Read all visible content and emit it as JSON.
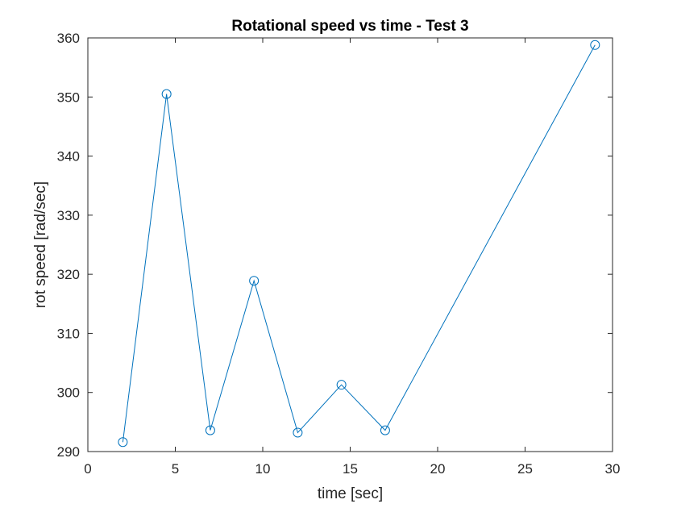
{
  "chart_data": {
    "type": "line",
    "title": "Rotational speed vs time - Test 3",
    "xlabel": "time [sec]",
    "ylabel": "rot speed [rad/sec]",
    "xlim": [
      0,
      30
    ],
    "ylim": [
      290,
      360
    ],
    "xticks": [
      0,
      5,
      10,
      15,
      20,
      25,
      30
    ],
    "yticks": [
      290,
      300,
      310,
      320,
      330,
      340,
      350,
      360
    ],
    "xtick_labels": [
      "0",
      "5",
      "10",
      "15",
      "20",
      "25",
      "30"
    ],
    "ytick_labels": [
      "290",
      "300",
      "310",
      "320",
      "330",
      "340",
      "350",
      "360"
    ],
    "grid": false,
    "marker": "circle",
    "series": [
      {
        "color": "#0072bd",
        "x": [
          2,
          4.5,
          7,
          9.5,
          12,
          14.5,
          17,
          29
        ],
        "y": [
          291.6,
          350.5,
          293.6,
          318.9,
          293.2,
          301.3,
          293.6,
          358.8
        ]
      }
    ]
  }
}
